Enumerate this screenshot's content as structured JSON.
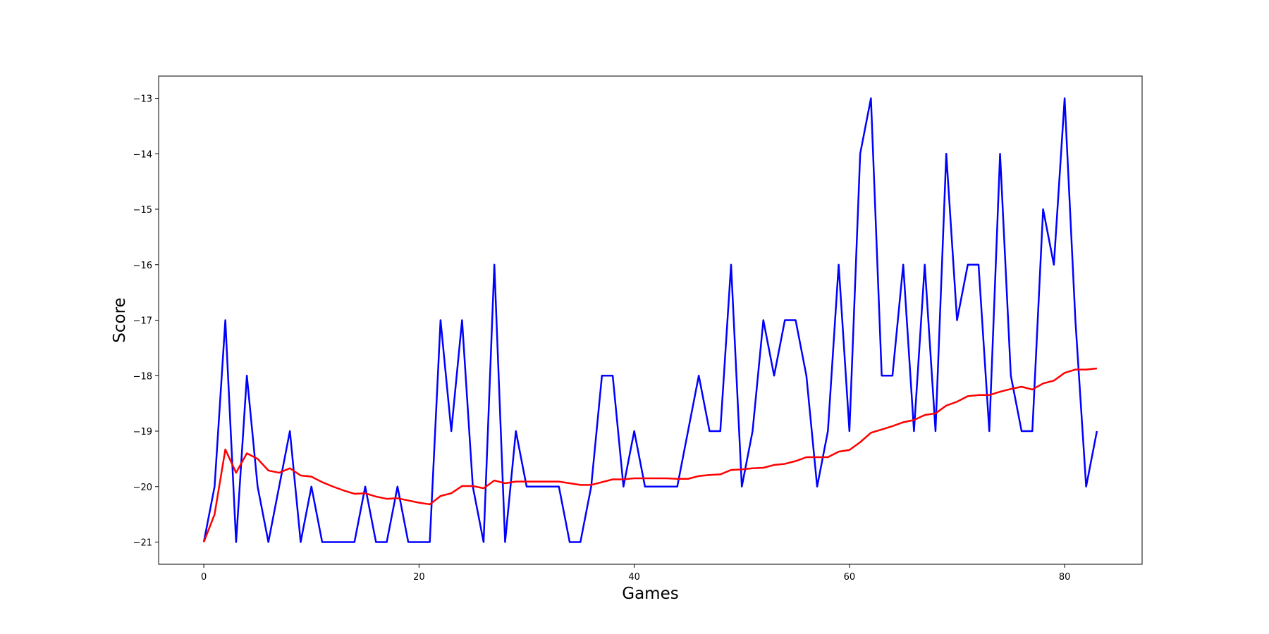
{
  "chart_data": {
    "type": "line",
    "title": "",
    "xlabel": "Games",
    "ylabel": "Score",
    "xlim": [
      -4.2,
      87.2
    ],
    "ylim": [
      -21.4,
      -12.6
    ],
    "xticks": [
      0,
      20,
      40,
      60,
      80
    ],
    "yticks": [
      -21,
      -20,
      -19,
      -18,
      -17,
      -16,
      -15,
      -14,
      -13
    ],
    "xtick_labels": [
      "0",
      "20",
      "40",
      "60",
      "80"
    ],
    "ytick_labels": [
      "−21",
      "−20",
      "−19",
      "−18",
      "−17",
      "−16",
      "−15",
      "−14",
      "−13"
    ],
    "grid": false,
    "x": [
      0,
      1,
      2,
      3,
      4,
      5,
      6,
      7,
      8,
      9,
      10,
      11,
      12,
      13,
      14,
      15,
      16,
      17,
      18,
      19,
      20,
      21,
      22,
      23,
      24,
      25,
      26,
      27,
      28,
      29,
      30,
      31,
      32,
      33,
      34,
      35,
      36,
      37,
      38,
      39,
      40,
      41,
      42,
      43,
      44,
      45,
      46,
      47,
      48,
      49,
      50,
      51,
      52,
      53,
      54,
      55,
      56,
      57,
      58,
      59,
      60,
      61,
      62,
      63,
      64,
      65,
      66,
      67,
      68,
      69,
      70,
      71,
      72,
      73,
      74,
      75,
      76,
      77,
      78,
      79,
      80,
      81,
      82,
      83
    ],
    "series": [
      {
        "color": "#0000ff",
        "values": [
          -21,
          -20,
          -17,
          -21,
          -18,
          -20,
          -21,
          -20,
          -19,
          -21,
          -20,
          -21,
          -21,
          -21,
          -21,
          -20,
          -21,
          -21,
          -20,
          -21,
          -21,
          -21,
          -17,
          -19,
          -17,
          -20,
          -21,
          -16,
          -21,
          -19,
          -20,
          -20,
          -20,
          -20,
          -21,
          -21,
          -20,
          -18,
          -18,
          -20,
          -19,
          -20,
          -20,
          -20,
          -20,
          -19,
          -18,
          -19,
          -19,
          -16,
          -20,
          -19,
          -17,
          -18,
          -17,
          -17,
          -18,
          -20,
          -19,
          -16,
          -19,
          -14,
          -13,
          -18,
          -18,
          -16,
          -19,
          -16,
          -19,
          -14,
          -17,
          -16,
          -16,
          -19,
          -14,
          -18,
          -19,
          -19,
          -15,
          -16,
          -13,
          -17,
          -20,
          -19
        ]
      },
      {
        "color": "#ff0000",
        "values": [
          -21,
          -20.5,
          -19.33,
          -19.75,
          -19.4,
          -19.5,
          -19.71,
          -19.75,
          -19.67,
          -19.8,
          -19.82,
          -19.92,
          -20,
          -20.07,
          -20.13,
          -20.12,
          -20.18,
          -20.22,
          -20.21,
          -20.25,
          -20.29,
          -20.32,
          -20.17,
          -20.12,
          -19.99,
          -19.99,
          -20.03,
          -19.89,
          -19.94,
          -19.91,
          -19.91,
          -19.91,
          -19.91,
          -19.91,
          -19.94,
          -19.97,
          -19.97,
          -19.92,
          -19.87,
          -19.87,
          -19.85,
          -19.85,
          -19.85,
          -19.85,
          -19.86,
          -19.86,
          -19.81,
          -19.79,
          -19.78,
          -19.7,
          -19.69,
          -19.67,
          -19.66,
          -19.61,
          -19.59,
          -19.54,
          -19.47,
          -19.47,
          -19.47,
          -19.37,
          -19.34,
          -19.2,
          -19.03,
          -18.97,
          -18.91,
          -18.84,
          -18.8,
          -18.71,
          -18.68,
          -18.54,
          -18.47,
          -18.37,
          -18.35,
          -18.35,
          -18.29,
          -18.24,
          -18.2,
          -18.25,
          -18.14,
          -18.09,
          -17.95,
          -17.89,
          -17.89,
          -17.87
        ]
      }
    ]
  }
}
